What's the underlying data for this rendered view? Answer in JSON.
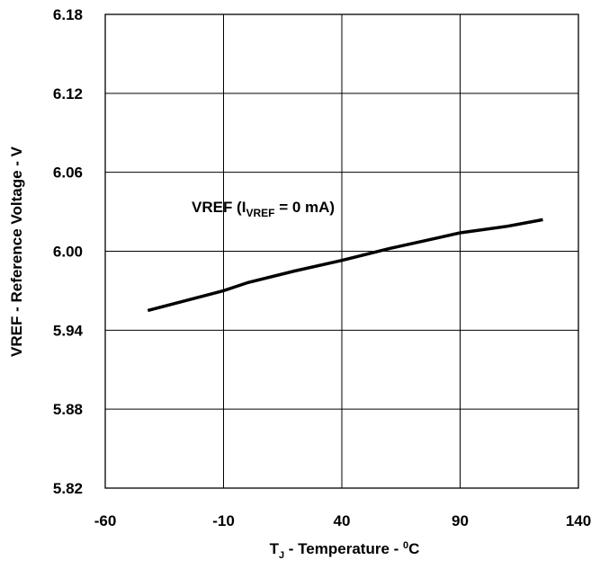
{
  "chart_data": {
    "type": "line",
    "xlabel": {
      "main": "T",
      "sub": "J",
      "rest": " - Temperature - ",
      "sup": "0",
      "unit": "C"
    },
    "ylabel": "VREF - Reference Voltage - V",
    "xlim": [
      -60,
      140
    ],
    "ylim": [
      5.82,
      6.18
    ],
    "xticks": [
      "-60",
      "-10",
      "40",
      "90",
      "140"
    ],
    "yticks": [
      "6.18",
      "6.12",
      "6.06",
      "6.00",
      "5.94",
      "5.88",
      "5.82"
    ],
    "grid": true,
    "series": [
      {
        "name": "VREF (IVREF = 0 mA)",
        "color": "#000000",
        "x": [
          -42,
          -10,
          0,
          20,
          40,
          60,
          80,
          90,
          110,
          125
        ],
        "y": [
          5.955,
          5.97,
          5.976,
          5.985,
          5.993,
          6.002,
          6.01,
          6.014,
          6.019,
          6.024
        ]
      }
    ],
    "annotation": {
      "main": "VREF (I",
      "sub": "VREF",
      "rest": " = 0 mA)"
    }
  }
}
